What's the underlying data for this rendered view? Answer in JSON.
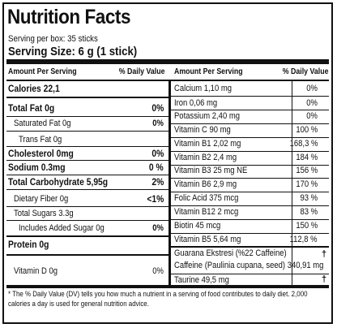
{
  "title": "Nutrition Facts",
  "serving_per_box": "Serving per box: 35 sticks",
  "serving_size": "Serving Size: 6 g (1 stick)",
  "left_header": {
    "amount": "Amount Per Serving",
    "dv": "% Daily Value"
  },
  "right_header": {
    "amount": "Amount Per Serving",
    "dv": "% Daily Value"
  },
  "calories": "Calories  22,1",
  "left_rows": [
    {
      "name": "Total Fat  0g",
      "dv": "0%"
    },
    {
      "name": "Saturated Fat  0g",
      "dv": "0%"
    },
    {
      "name": "Trans Fat  0g",
      "dv": ""
    },
    {
      "name": "Cholesterol  0mg",
      "dv": "0%"
    },
    {
      "name": "Sodium  0.3mg",
      "dv": "0 %"
    },
    {
      "name": "Total Carbohydrate  5,95g",
      "dv": "2%"
    },
    {
      "name": "Dietary Fiber 0g",
      "dv": "<1%"
    },
    {
      "name": "Total Sugars 3.3g",
      "dv": ""
    },
    {
      "name": "Includes Added Sugar 0g",
      "dv": "0%"
    },
    {
      "name": "Protein  0g",
      "dv": ""
    },
    {
      "name": "Vitamin D 0g",
      "dv": "0%"
    }
  ],
  "right_rows": [
    {
      "name": "Calcium 1,10 mg",
      "dv": "0%"
    },
    {
      "name": "Iron 0,06 mg",
      "dv": "0%"
    },
    {
      "name": "Potassium 2,40 mg",
      "dv": "0%"
    },
    {
      "name": "Vitamin C 90 mg",
      "dv": "100 %"
    },
    {
      "name": "Vitamin B1 2,02 mg",
      "dv": "168,3 %"
    },
    {
      "name": "Vitamin B2 2,4 mg",
      "dv": "184 %"
    },
    {
      "name": "Vitamin B3 25 mg NE",
      "dv": "156 %"
    },
    {
      "name": "Vitamin B6 2,9 mg",
      "dv": "170 %"
    },
    {
      "name": "Folic Acid 375 mcg",
      "dv": "93 %"
    },
    {
      "name": "Vitamin B12 2 mcg",
      "dv": "83 %"
    },
    {
      "name": "Biotin 45 mcg",
      "dv": "150 %"
    },
    {
      "name": "Vitamin B5 5,64 mg",
      "dv": "112,8 %"
    }
  ],
  "guarana": {
    "line1": "Guarana Ekstresi (%22 Caffeine)",
    "line2": "Caffeine (Paulinia cupana, seed) 340,91 mg",
    "dv": "†"
  },
  "taurine": {
    "name": "Taurine 49,5 mg",
    "dv": "†"
  },
  "footnote": "* The % Daily Value (DV) tells you how much a nutrient in a serving of food contributes to daily diet. 2,000 calories a day is used for general nutrition advice."
}
